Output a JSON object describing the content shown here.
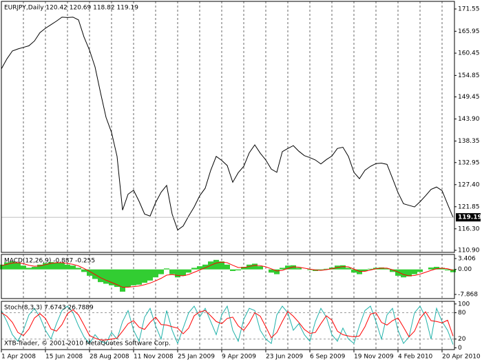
{
  "chart_data": [
    {
      "type": "line",
      "title": "EURJPY,Daily  120.42 120.69 118.82 119.19",
      "categories": [
        "1 Apr 2008",
        null,
        null,
        null,
        null,
        null,
        null,
        null,
        "15 Jun 2008",
        null,
        null,
        null,
        null,
        null,
        null,
        null,
        "28 Aug 2008",
        null,
        null,
        null,
        null,
        null,
        null,
        null,
        "11 Nov 2008",
        null,
        null,
        null,
        null,
        null,
        null,
        null,
        "25 Jan 2009",
        null,
        null,
        null,
        null,
        null,
        null,
        null,
        "9 Apr 2009",
        null,
        null,
        null,
        null,
        null,
        null,
        null,
        "23 Jun 2009",
        null,
        null,
        null,
        null,
        null,
        null,
        null,
        "6 Sep 2009",
        null,
        null,
        null,
        null,
        null,
        null,
        null,
        "19 Nov 2009",
        null,
        null,
        null,
        null,
        null,
        null,
        null,
        "4 Feb 2010",
        null,
        null,
        null,
        null,
        null,
        null,
        null,
        "20 Apr 2010",
        null,
        null
      ],
      "series": [
        {
          "type": "line",
          "color": "#000000",
          "values": [
            156.5,
            159,
            161,
            161.5,
            161.9,
            162.3,
            163.5,
            165.6,
            166.7,
            167.6,
            168.5,
            169.5,
            169.4,
            169.5,
            168.8,
            164.5,
            161.2,
            157,
            150.5,
            144.3,
            140.5,
            134.5,
            121,
            125,
            126,
            123.2,
            120,
            119.5,
            122.9,
            125.5,
            127.2,
            120,
            116,
            117,
            119.5,
            121.8,
            124.6,
            126.5,
            131,
            134.5,
            133.5,
            132.2,
            128,
            130.4,
            132,
            135.4,
            137.4,
            135.3,
            133.6,
            131.3,
            130.5,
            135.7,
            136.5,
            137.2,
            135.8,
            134.7,
            134.2,
            133.6,
            132.6,
            133.7,
            134.6,
            136.5,
            136.8,
            134.5,
            130.5,
            128.9,
            131,
            132,
            132.7,
            132.8,
            132.5,
            129,
            125.4,
            122.6,
            122.2,
            121.8,
            123.1,
            124.6,
            126.2,
            126.8,
            125.9,
            122.5,
            119.19
          ]
        }
      ],
      "ylim": [
        110.38,
        173.46
      ],
      "yticks": [
        {
          "value": 171.55,
          "label": "171.55"
        },
        165.95,
        160.45,
        154.85,
        149.45,
        {
          "value": 143.9,
          "label": "143.90"
        },
        138.35,
        132.95,
        {
          "value": 127.4,
          "label": "127.40"
        },
        121.85,
        {
          "value": 116.3,
          "label": "116.30"
        },
        {
          "value": 110.9,
          "label": "110.90"
        }
      ],
      "last_price_line": true
    },
    {
      "type": "bar",
      "title": "MACD(12,26,9) -0.887 -0.255",
      "series": [
        {
          "type": "bar",
          "color": "#32cd32",
          "values": [
            1.5,
            2.2,
            2.5,
            2,
            1.2,
            0.5,
            0.8,
            1.5,
            2,
            2.3,
            2.2,
            2,
            1.5,
            1.2,
            0.5,
            -0.8,
            -2,
            -3,
            -4,
            -4.5,
            -5,
            -5.5,
            -7,
            -5.5,
            -5,
            -4.8,
            -4.2,
            -3.5,
            -2.5,
            -1.5,
            0.3,
            -1.5,
            -2.5,
            -2,
            -1,
            0.5,
            1,
            1.5,
            2.5,
            3,
            2.5,
            1.5,
            -0.5,
            -0.3,
            0.8,
            1.5,
            1.8,
            1,
            0,
            -1,
            -1.5,
            0.5,
            1.2,
            1.3,
            0.5,
            0,
            -0.2,
            -0.5,
            -0.3,
            0.2,
            0.6,
            1.2,
            1.3,
            0.5,
            -1,
            -1.5,
            -0.5,
            0.2,
            0.5,
            0.6,
            0.3,
            -0.8,
            -2,
            -2.5,
            -2.2,
            -1.5,
            -0.8,
            0,
            0.6,
            0.8,
            0.5,
            -0.3,
            -0.887
          ]
        },
        {
          "type": "line",
          "color": "#ff0000",
          "values": [
            1.2,
            1.6,
            2,
            2.1,
            1.8,
            1.3,
            1,
            1.1,
            1.5,
            1.9,
            2.1,
            2.1,
            1.9,
            1.6,
            1.1,
            0.3,
            -0.6,
            -1.6,
            -2.6,
            -3.4,
            -4.1,
            -4.8,
            -5.6,
            -5.6,
            -5.4,
            -5.2,
            -4.8,
            -4.3,
            -3.6,
            -2.8,
            -1.8,
            -1.6,
            -1.9,
            -2,
            -1.6,
            -0.9,
            -0.2,
            0.5,
            1.3,
            2,
            2.3,
            2.1,
            1.3,
            0.6,
            0.6,
            0.9,
            1.3,
            1.2,
            0.8,
            0.2,
            -0.5,
            -0.3,
            0.3,
            0.8,
            0.7,
            0.4,
            0.1,
            -0.2,
            -0.3,
            -0.1,
            0.2,
            0.6,
            0.9,
            0.8,
            0.1,
            -0.6,
            -0.6,
            -0.2,
            0.2,
            0.4,
            0.4,
            -0.1,
            -0.8,
            -1.6,
            -2,
            -1.9,
            -1.5,
            -0.9,
            -0.3,
            0.2,
            0.4,
            0.2,
            -0.255
          ]
        }
      ],
      "ylim": [
        -9.17,
        4.71
      ],
      "yticks": [
        3.406,
        {
          "value": 0,
          "label": "0.00"
        },
        -7.868
      ]
    },
    {
      "type": "line",
      "title": "Stoch(8,3,3) 7.6743 26.7889",
      "annotation": "XTB-Trader, © 2001-2010 MetaQuotes Software Corp.",
      "series": [
        {
          "type": "line",
          "color": "#20b2aa",
          "values": [
            85,
            60,
            30,
            15,
            40,
            75,
            90,
            70,
            40,
            20,
            55,
            85,
            95,
            80,
            50,
            25,
            10,
            30,
            15,
            10,
            35,
            20,
            60,
            85,
            40,
            15,
            70,
            90,
            50,
            20,
            85,
            40,
            10,
            45,
            80,
            95,
            70,
            90,
            60,
            30,
            75,
            95,
            40,
            15,
            65,
            90,
            85,
            40,
            20,
            10,
            75,
            95,
            80,
            40,
            55,
            30,
            15,
            60,
            90,
            70,
            30,
            15,
            45,
            20,
            10,
            50,
            85,
            95,
            60,
            20,
            75,
            90,
            40,
            10,
            25,
            80,
            95,
            70,
            20,
            90,
            60,
            40,
            7.6743
          ]
        },
        {
          "type": "line",
          "color": "#ff0000",
          "values": [
            80,
            72,
            58,
            35,
            28,
            43,
            68,
            78,
            67,
            43,
            38,
            53,
            78,
            87,
            75,
            52,
            28,
            22,
            18,
            18,
            20,
            22,
            38,
            55,
            62,
            47,
            42,
            58,
            70,
            53,
            52,
            48,
            45,
            32,
            45,
            73,
            82,
            85,
            73,
            60,
            55,
            67,
            70,
            50,
            40,
            57,
            80,
            72,
            48,
            23,
            35,
            60,
            83,
            72,
            58,
            42,
            33,
            35,
            55,
            73,
            63,
            38,
            30,
            27,
            25,
            27,
            48,
            77,
            80,
            58,
            52,
            62,
            68,
            47,
            25,
            38,
            67,
            82,
            62,
            60,
            57,
            63,
            26.7889
          ]
        }
      ],
      "ylim": [
        -4,
        106
      ],
      "yticks": [
        100,
        80,
        20,
        0
      ],
      "levels": [
        80,
        20
      ]
    }
  ]
}
